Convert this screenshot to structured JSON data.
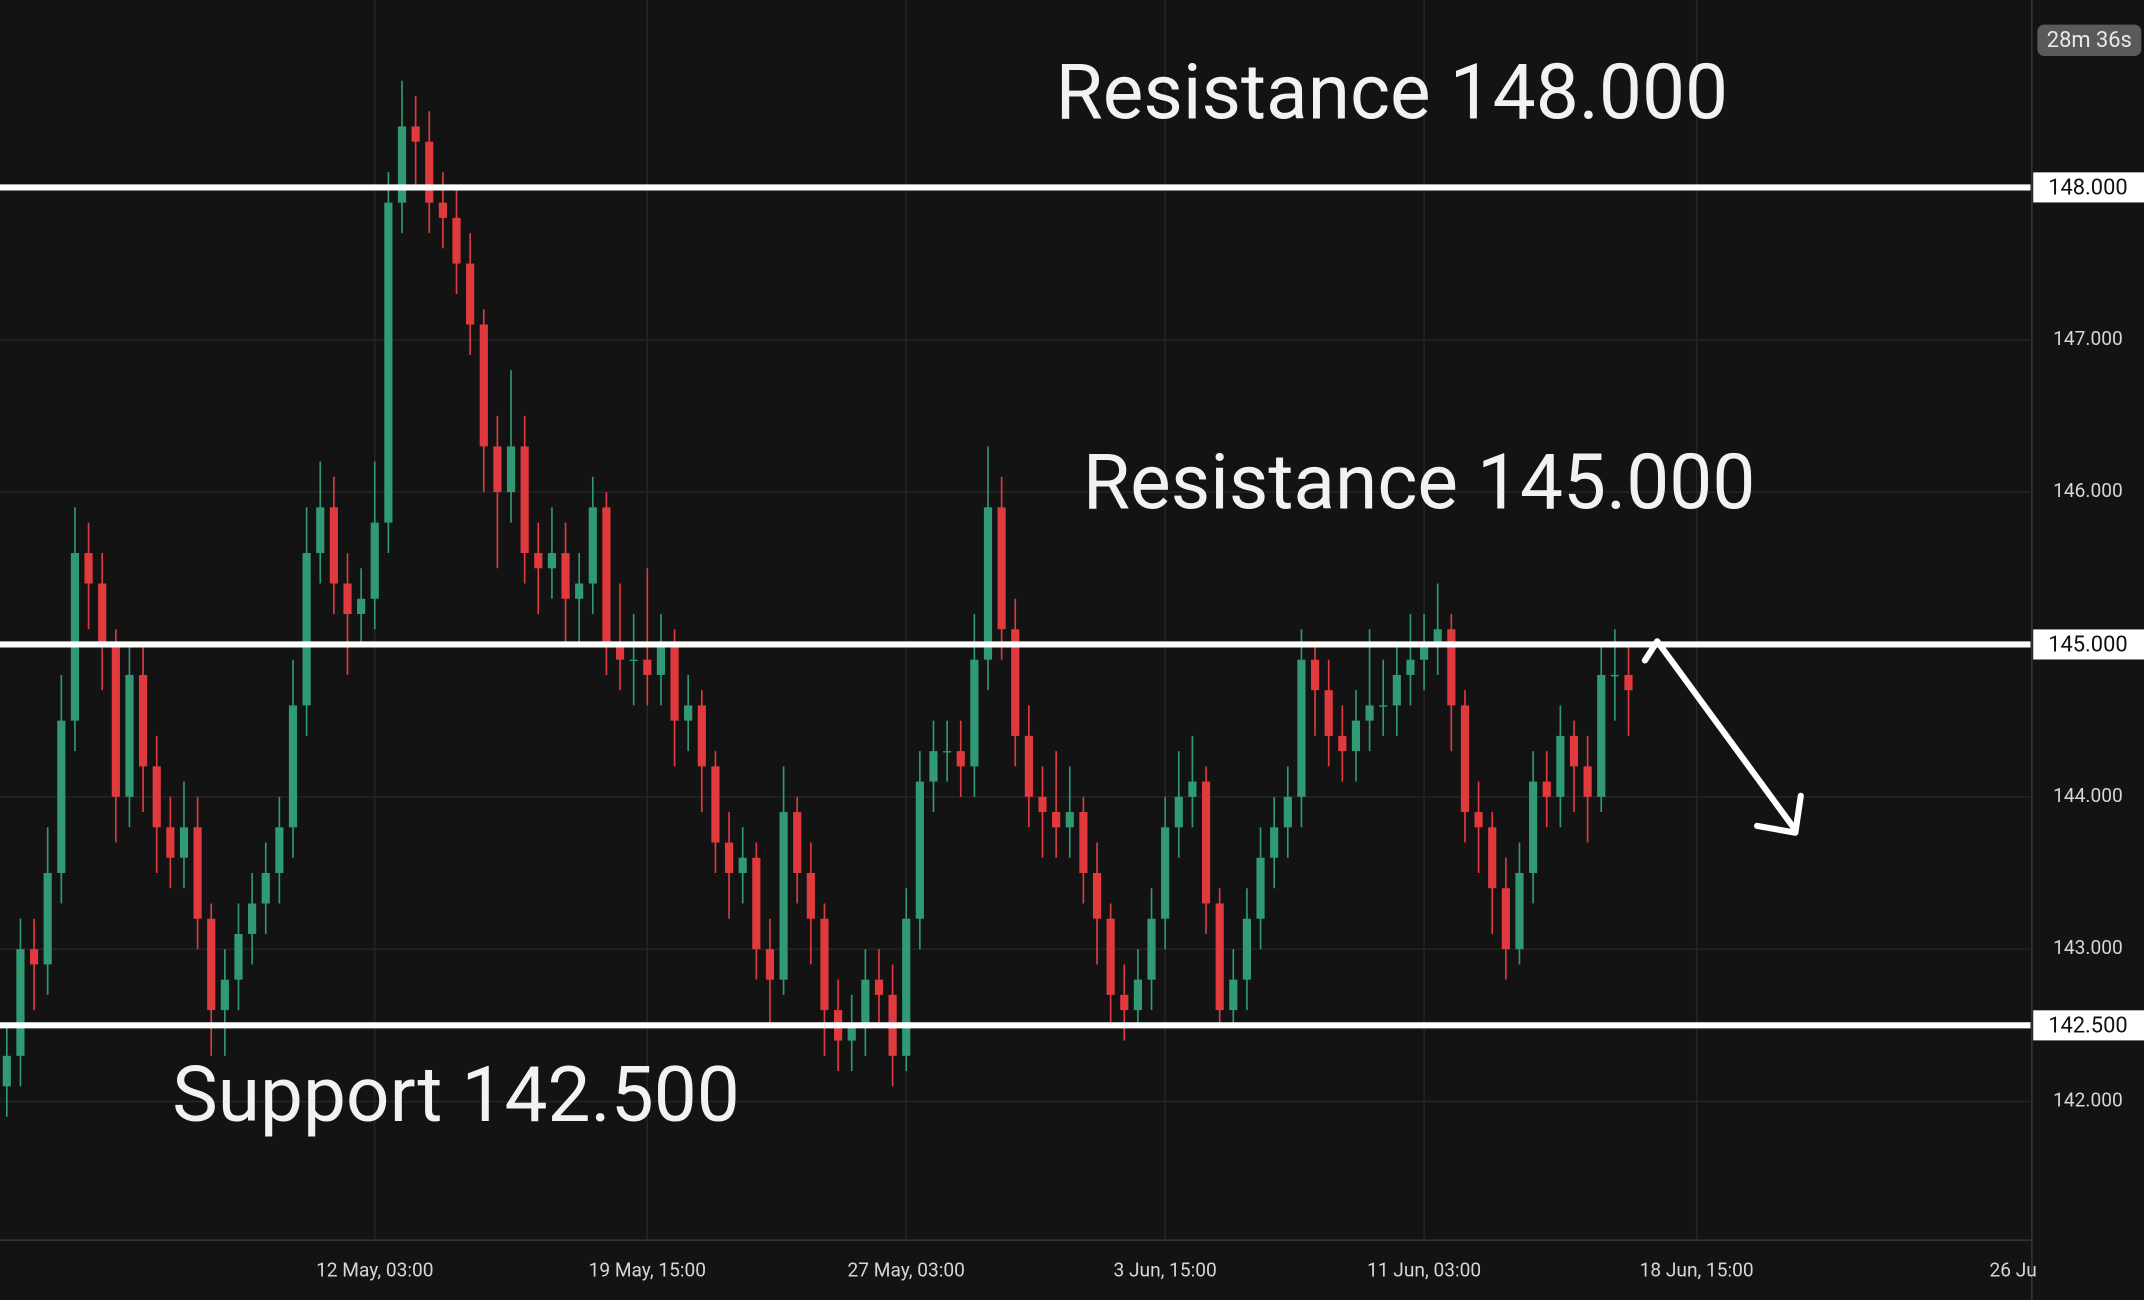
{
  "chart_data": {
    "type": "candlestick",
    "countdown": "28m 36s",
    "categories": [
      null,
      null,
      null,
      null,
      null,
      null,
      null,
      null,
      null,
      null,
      null,
      null,
      null,
      null,
      null,
      null,
      null,
      null,
      null,
      null,
      null,
      null,
      null,
      null,
      null,
      null,
      null,
      "12 May, 03:00",
      null,
      null,
      null,
      null,
      null,
      null,
      null,
      null,
      null,
      null,
      null,
      null,
      null,
      null,
      null,
      null,
      null,
      null,
      null,
      "19 May, 15:00",
      null,
      null,
      null,
      null,
      null,
      null,
      null,
      null,
      null,
      null,
      null,
      null,
      null,
      null,
      null,
      null,
      null,
      null,
      "27 May, 03:00",
      null,
      null,
      null,
      null,
      null,
      null,
      null,
      null,
      null,
      null,
      null,
      null,
      null,
      null,
      null,
      null,
      null,
      null,
      "3 Jun, 15:00",
      null,
      null,
      null,
      null,
      null,
      null,
      null,
      null,
      null,
      null,
      null,
      null,
      null,
      null,
      null,
      null,
      null,
      null,
      "11 Jun, 03:00",
      null,
      null,
      null,
      null,
      null,
      null,
      null,
      null,
      null,
      null,
      null,
      null,
      null,
      null,
      null,
      null,
      null,
      null,
      null,
      "18 Jun, 15:00",
      null,
      null,
      null,
      null,
      null,
      null,
      null,
      null,
      null,
      null,
      null,
      null,
      null,
      null,
      null,
      null,
      null,
      null,
      null,
      null,
      null,
      null,
      null,
      "26 Ju"
    ],
    "open": [
      142.1,
      142.3,
      143.0,
      142.9,
      143.5,
      144.5,
      145.6,
      145.4,
      145.0,
      144.0,
      144.8,
      144.2,
      143.8,
      143.6,
      143.8,
      143.2,
      142.6,
      142.8,
      143.1,
      143.3,
      143.5,
      143.8,
      144.6,
      145.6,
      145.9,
      145.4,
      145.2,
      145.3,
      145.8,
      147.9,
      148.4,
      148.3,
      147.9,
      147.8,
      147.5,
      147.1,
      146.3,
      146.0,
      146.3,
      145.6,
      145.5,
      145.6,
      145.3,
      145.4,
      145.9,
      145.0,
      144.9,
      144.9,
      144.8,
      145.0,
      144.5,
      144.6,
      144.2,
      143.7,
      143.5,
      143.6,
      143.0,
      142.8,
      143.9,
      143.5,
      143.2,
      142.6,
      142.4,
      142.5,
      142.8,
      142.7,
      142.3,
      143.2,
      144.1,
      144.3,
      144.3,
      144.2,
      144.9,
      145.9,
      145.1,
      144.4,
      144.0,
      143.9,
      143.8,
      143.9,
      143.5,
      143.2,
      142.7,
      142.6,
      142.8,
      143.2,
      143.8,
      144.0,
      144.1,
      143.3,
      142.6,
      142.8,
      143.2,
      143.6,
      143.8,
      144.0,
      144.9,
      144.7,
      144.4,
      144.3,
      144.5,
      144.6,
      144.6,
      144.8,
      144.9,
      145.0,
      145.1,
      144.6,
      143.9,
      143.8,
      143.4,
      143.0,
      143.5,
      144.1,
      144.0,
      144.4,
      144.2,
      144.0,
      144.8,
      144.8,
      null,
      null,
      null,
      null,
      null,
      null,
      null,
      null,
      null,
      null,
      null,
      null,
      null,
      null,
      null,
      null,
      null,
      null,
      null,
      null,
      null,
      null,
      null,
      null,
      null,
      null,
      null,
      null,
      null
    ],
    "high": [
      142.5,
      143.2,
      143.2,
      143.8,
      144.8,
      145.9,
      145.8,
      145.6,
      145.1,
      145.0,
      145.0,
      144.4,
      144.0,
      144.1,
      144.0,
      143.3,
      143.0,
      143.3,
      143.5,
      143.7,
      144.0,
      144.9,
      145.9,
      146.2,
      146.1,
      145.6,
      145.5,
      146.2,
      148.1,
      148.7,
      148.6,
      148.5,
      148.1,
      148.0,
      147.7,
      147.2,
      146.5,
      146.8,
      146.5,
      145.8,
      145.9,
      145.8,
      145.6,
      146.1,
      146.0,
      145.4,
      145.2,
      145.5,
      145.2,
      145.1,
      144.8,
      144.7,
      144.3,
      143.9,
      143.8,
      143.7,
      143.2,
      144.2,
      144.0,
      143.7,
      143.3,
      142.8,
      142.7,
      143.0,
      143.0,
      142.9,
      143.4,
      144.3,
      144.5,
      144.5,
      144.5,
      145.2,
      146.3,
      146.1,
      145.3,
      144.6,
      144.2,
      144.3,
      144.2,
      144.0,
      143.7,
      143.3,
      142.9,
      143.0,
      143.4,
      144.0,
      144.3,
      144.4,
      144.2,
      143.4,
      143.0,
      143.4,
      143.8,
      144.0,
      144.2,
      145.1,
      145.0,
      144.9,
      144.6,
      144.7,
      145.1,
      144.9,
      145.0,
      145.2,
      145.2,
      145.4,
      145.2,
      144.7,
      144.1,
      143.9,
      143.6,
      143.7,
      144.3,
      144.3,
      144.6,
      144.5,
      144.4,
      145.0,
      145.1,
      145.0,
      null,
      null,
      null,
      null,
      null,
      null,
      null,
      null,
      null,
      null,
      null,
      null,
      null,
      null,
      null,
      null,
      null,
      null,
      null,
      null,
      null,
      null,
      null,
      null,
      null,
      null,
      null,
      null,
      null
    ],
    "low": [
      141.9,
      142.1,
      142.6,
      142.7,
      143.3,
      144.3,
      145.1,
      144.7,
      143.7,
      143.8,
      143.9,
      143.5,
      143.4,
      143.4,
      143.0,
      142.3,
      142.3,
      142.6,
      142.9,
      143.1,
      143.3,
      143.6,
      144.4,
      145.4,
      145.2,
      144.8,
      145.0,
      145.1,
      145.6,
      147.7,
      148.0,
      147.7,
      147.6,
      147.3,
      146.9,
      146.0,
      145.5,
      145.8,
      145.4,
      145.2,
      145.3,
      145.0,
      145.0,
      145.2,
      144.8,
      144.7,
      144.6,
      144.6,
      144.6,
      144.2,
      144.3,
      143.9,
      143.5,
      143.2,
      143.3,
      142.8,
      142.5,
      142.7,
      143.3,
      142.9,
      142.3,
      142.2,
      142.2,
      142.3,
      142.5,
      142.1,
      142.2,
      143.0,
      143.9,
      144.1,
      144.0,
      144.0,
      144.7,
      144.9,
      144.2,
      143.8,
      143.6,
      143.6,
      143.6,
      143.3,
      142.9,
      142.5,
      142.4,
      142.5,
      142.6,
      143.0,
      143.6,
      143.8,
      143.1,
      142.5,
      142.5,
      142.6,
      143.0,
      143.4,
      143.6,
      143.8,
      144.4,
      144.2,
      144.1,
      144.1,
      144.3,
      144.4,
      144.4,
      144.6,
      144.7,
      144.8,
      144.3,
      143.7,
      143.5,
      143.1,
      142.8,
      142.9,
      143.3,
      143.8,
      143.8,
      143.9,
      143.7,
      143.9,
      144.5,
      144.4,
      null,
      null,
      null,
      null,
      null,
      null,
      null,
      null,
      null,
      null,
      null,
      null,
      null,
      null,
      null,
      null,
      null,
      null,
      null,
      null,
      null,
      null,
      null,
      null,
      null,
      null,
      null,
      null,
      null
    ],
    "close": [
      142.3,
      143.0,
      142.9,
      143.5,
      144.5,
      145.6,
      145.4,
      145.0,
      144.0,
      144.8,
      144.2,
      143.8,
      143.6,
      143.8,
      143.2,
      142.6,
      142.8,
      143.1,
      143.3,
      143.5,
      143.8,
      144.6,
      145.6,
      145.9,
      145.4,
      145.2,
      145.3,
      145.8,
      147.9,
      148.4,
      148.3,
      147.9,
      147.8,
      147.5,
      147.1,
      146.3,
      146.0,
      146.3,
      145.6,
      145.5,
      145.6,
      145.3,
      145.4,
      145.9,
      145.0,
      144.9,
      144.9,
      144.8,
      145.0,
      144.5,
      144.6,
      144.2,
      143.7,
      143.5,
      143.6,
      143.0,
      142.8,
      143.9,
      143.5,
      143.2,
      142.6,
      142.4,
      142.5,
      142.8,
      142.7,
      142.3,
      143.2,
      144.1,
      144.3,
      144.3,
      144.2,
      144.9,
      145.9,
      145.1,
      144.4,
      144.0,
      143.9,
      143.8,
      143.9,
      143.5,
      143.2,
      142.7,
      142.6,
      142.8,
      143.2,
      143.8,
      144.0,
      144.1,
      143.3,
      142.6,
      142.8,
      143.2,
      143.6,
      143.8,
      144.0,
      144.9,
      144.7,
      144.4,
      144.3,
      144.5,
      144.6,
      144.6,
      144.8,
      144.9,
      145.0,
      145.1,
      144.6,
      143.9,
      143.8,
      143.4,
      143.0,
      143.5,
      144.1,
      144.0,
      144.4,
      144.2,
      144.0,
      144.8,
      144.8,
      144.7,
      null,
      null,
      null,
      null,
      null,
      null,
      null,
      null,
      null,
      null,
      null,
      null,
      null,
      null,
      null,
      null,
      null,
      null,
      null,
      null,
      null,
      null,
      null,
      null,
      null,
      null,
      null,
      null,
      null
    ],
    "up_color": "#2f9a73",
    "down_color": "#e03a3e",
    "ylim": [
      141.09,
      149.23
    ],
    "yticks": [
      {
        "value": 142,
        "label": "142.000"
      },
      {
        "value": 143,
        "label": "143.000"
      },
      {
        "value": 144,
        "label": "144.000"
      },
      {
        "value": 146,
        "label": "146.000"
      },
      {
        "value": 147,
        "label": "147.000"
      }
    ],
    "grid": true,
    "levels": [
      {
        "value": 148,
        "label": "148.000",
        "annotation": "Resistance 148.000"
      },
      {
        "value": 145,
        "label": "145.000",
        "annotation": "Resistance 145.000"
      },
      {
        "value": 142.5,
        "label": "142.500",
        "annotation": "Support 142.500"
      }
    ]
  }
}
